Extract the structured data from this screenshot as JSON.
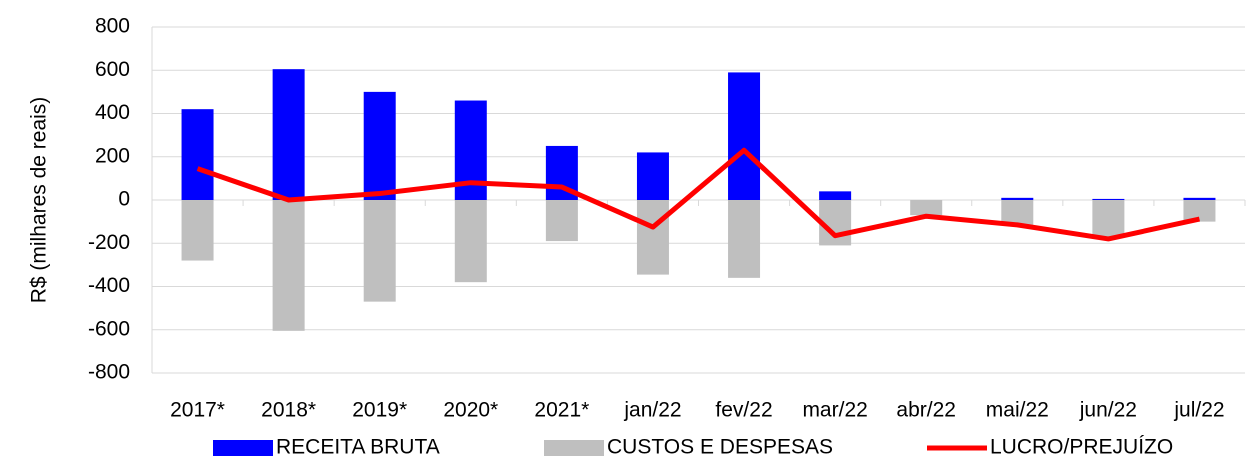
{
  "chart_data": {
    "type": "bar_line",
    "y_label": "R$ (milhares de reais)",
    "categories": [
      "2017*",
      "2018*",
      "2019*",
      "2020*",
      "2021*",
      "jan/22",
      "fev/22",
      "mar/22",
      "abr/22",
      "mai/22",
      "jun/22",
      "jul/22"
    ],
    "series": [
      {
        "name": "RECEITA BRUTA",
        "type": "bar",
        "color": "#0000ff",
        "values": [
          420,
          605,
          500,
          460,
          250,
          220,
          590,
          40,
          0,
          10,
          5,
          10
        ]
      },
      {
        "name": "CUSTOS E DESPESAS",
        "type": "bar",
        "color": "#bfbfbf",
        "values": [
          -280,
          -605,
          -470,
          -380,
          -190,
          -345,
          -360,
          -210,
          -70,
          -115,
          -175,
          -100
        ]
      },
      {
        "name": "LUCRO/PREJUÍZO",
        "type": "line",
        "color": "#ff0000",
        "values": [
          145,
          0,
          30,
          80,
          60,
          -125,
          230,
          -165,
          -75,
          -115,
          -180,
          -88
        ]
      }
    ],
    "ylim": [
      -800,
      800
    ],
    "yticks": [
      -800,
      -600,
      -400,
      -200,
      0,
      200,
      400,
      600,
      800
    ],
    "negative_tick_color": "#ff0000",
    "grid": true,
    "legend": "bottom"
  }
}
